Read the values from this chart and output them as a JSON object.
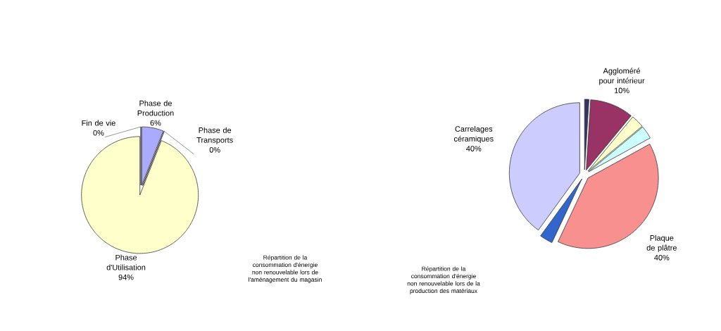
{
  "chart_data": [
    {
      "type": "pie",
      "categories": [
        "Fin de vie",
        "Phase de Production",
        "Phase de Transports",
        "Phase d'Utilisation"
      ],
      "values": [
        0,
        6,
        0,
        94
      ],
      "colors": [
        "#1f1f5f",
        "#aaaaff",
        "#ffffff",
        "#ffffcc"
      ],
      "value_labels": [
        "0%",
        "6%",
        "0%",
        "94%"
      ],
      "annotations": [
        "Répartition de la consommation d'énergie non renouvelable lors de l'aménagement du magasin"
      ]
    },
    {
      "type": "pie",
      "categories": [
        null,
        "Aggloméré pour intérieur",
        null,
        null,
        "Plaque de plâtre",
        null,
        "Carrelages céramiques"
      ],
      "values": [
        1,
        10,
        3,
        3,
        40,
        3,
        40
      ],
      "colors": [
        "#333366",
        "#993366",
        "#ffffcc",
        "#ccffff",
        "#f99090",
        "#3366cc",
        "#ccccff"
      ],
      "value_labels": [
        null,
        "10%",
        null,
        null,
        "40%",
        null,
        "40%"
      ],
      "annotations": [
        "Répartition de la consommation d'énergie non renouvelable lors de la production des matériaux"
      ]
    }
  ]
}
